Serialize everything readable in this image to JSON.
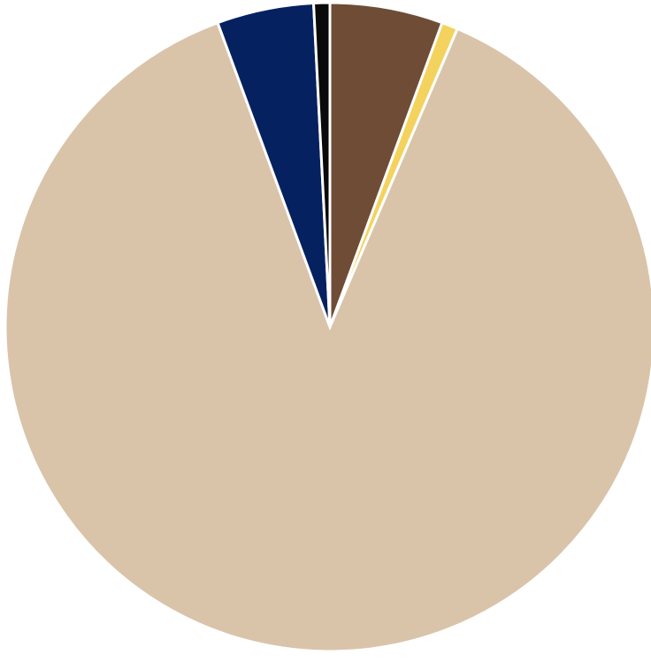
{
  "chart_data": {
    "type": "pie",
    "start_angle": "12 o'clock",
    "direction": "clockwise",
    "slices": [
      {
        "value": 5.6,
        "color": "#6f4c36"
      },
      {
        "value": 0.8,
        "color": "#f3d35e"
      },
      {
        "value": 87.6,
        "color": "#d9c4aa"
      },
      {
        "value": 4.8,
        "color": "#05215f"
      },
      {
        "value": 0.8,
        "color": "#0a0a0a"
      }
    ]
  }
}
